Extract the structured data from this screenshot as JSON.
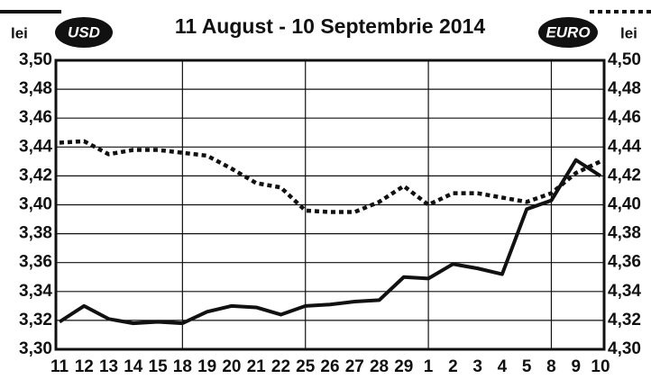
{
  "chart_data": {
    "type": "line",
    "title": "11 August - 10 Septembrie 2014",
    "y_label": "lei",
    "y2_label": "lei",
    "categories": [
      "11",
      "12",
      "13",
      "14",
      "15",
      "18",
      "19",
      "20",
      "21",
      "22",
      "25",
      "26",
      "27",
      "28",
      "29",
      "1",
      "2",
      "3",
      "4",
      "5",
      "8",
      "9",
      "10"
    ],
    "series": [
      {
        "name": "USD",
        "color": "#111111",
        "style": "solid",
        "axis": "y",
        "values": [
          3.319,
          3.33,
          3.321,
          3.318,
          3.319,
          3.318,
          3.326,
          3.33,
          3.329,
          3.324,
          3.33,
          3.331,
          3.333,
          3.334,
          3.35,
          3.349,
          3.359,
          3.356,
          3.352,
          3.397,
          3.403,
          3.431,
          3.42
        ]
      },
      {
        "name": "EURO",
        "color": "#111111",
        "style": "dotted",
        "axis": "y2",
        "values": [
          4.443,
          4.444,
          4.435,
          4.438,
          4.438,
          4.436,
          4.434,
          4.425,
          4.415,
          4.412,
          4.396,
          4.395,
          4.395,
          4.402,
          4.413,
          4.4,
          4.408,
          4.408,
          4.405,
          4.402,
          4.408,
          4.422,
          4.43
        ]
      }
    ],
    "ylim": [
      3.3,
      3.5
    ],
    "yticks": [
      {
        "value": 3.3,
        "label": "3,30"
      },
      {
        "value": 3.32,
        "label": "3,32"
      },
      {
        "value": 3.34,
        "label": "3,34"
      },
      {
        "value": 3.36,
        "label": "3,36"
      },
      {
        "value": 3.38,
        "label": "3,38"
      },
      {
        "value": 3.4,
        "label": "3,40"
      },
      {
        "value": 3.42,
        "label": "3,42"
      },
      {
        "value": 3.44,
        "label": "3,44"
      },
      {
        "value": 3.46,
        "label": "3,46"
      },
      {
        "value": 3.48,
        "label": "3,48"
      },
      {
        "value": 3.5,
        "label": "3,50"
      }
    ],
    "y2lim": [
      4.3,
      4.5
    ],
    "y2ticks": [
      {
        "value": 4.3,
        "label": "4,30"
      },
      {
        "value": 4.32,
        "label": "4,32"
      },
      {
        "value": 4.34,
        "label": "4,34"
      },
      {
        "value": 4.36,
        "label": "4,36"
      },
      {
        "value": 4.38,
        "label": "4,38"
      },
      {
        "value": 4.4,
        "label": "4,40"
      },
      {
        "value": 4.42,
        "label": "4,42"
      },
      {
        "value": 4.44,
        "label": "4,44"
      },
      {
        "value": 4.46,
        "label": "4,46"
      },
      {
        "value": 4.48,
        "label": "4,48"
      },
      {
        "value": 4.5,
        "label": "4,50"
      }
    ],
    "grid": true
  }
}
